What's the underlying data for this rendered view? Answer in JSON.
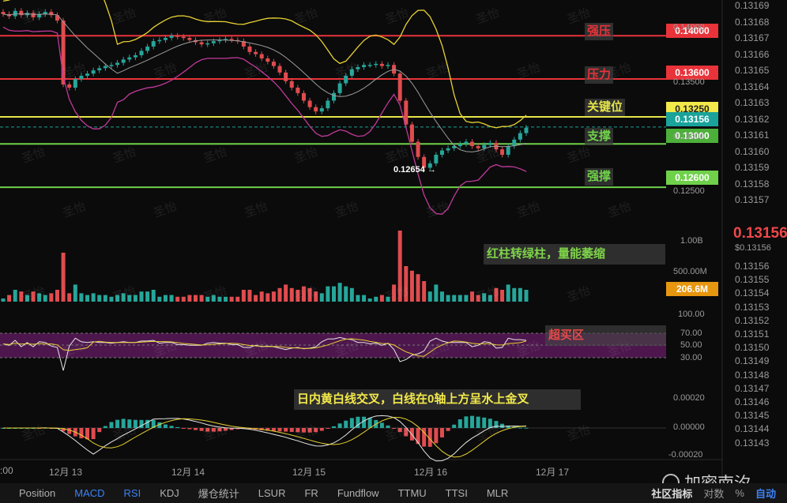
{
  "chart_data": {
    "type": "candlestick",
    "x_labels": [
      "12月 13",
      "12月 14",
      "12月 15",
      "12月 16",
      "12月 17"
    ],
    "time_left_partial": ":00",
    "price_axis": {
      "ticks": [
        "0.14000",
        "0.13500",
        "0.13000",
        "0.12500"
      ],
      "range": [
        0.1236,
        0.1433
      ]
    },
    "levels": [
      {
        "name": "强压",
        "value": 0.14,
        "label": "0.14000",
        "color": "#e8333a"
      },
      {
        "name": "压力",
        "value": 0.136,
        "label": "0.13600",
        "color": "#e8333a"
      },
      {
        "name": "关键位",
        "value": 0.1325,
        "label": "0.13250",
        "color": "#e5e54a"
      },
      {
        "name": "支撑",
        "value": 0.13,
        "label": "0.13000",
        "color": "#6fd14a"
      },
      {
        "name": "强撑",
        "value": 0.126,
        "label": "0.12600",
        "color": "#6fd14a"
      }
    ],
    "current_price": {
      "value": 0.13156,
      "label": "0.13156",
      "color": "#19a39b"
    },
    "low_marker": {
      "value": 0.12654,
      "label": "0.12654"
    },
    "far_axis": {
      "ticks": [
        "0.13169",
        "0.13168",
        "0.13167",
        "0.13166",
        "0.13165",
        "0.13164",
        "0.13163",
        "0.13162",
        "0.13161",
        "0.13160",
        "0.13159",
        "0.13158",
        "0.13157",
        "0.13156",
        "0.13155",
        "0.13154",
        "0.13153",
        "0.13152",
        "0.13151",
        "0.13150",
        "0.13149",
        "0.13148",
        "0.13147",
        "0.13146",
        "0.13145",
        "0.13144",
        "0.13143"
      ],
      "big_label": "0.13156",
      "sub_label": "$0.13156"
    },
    "close_series": [
      0.142,
      0.1418,
      0.1423,
      0.1419,
      0.1421,
      0.1417,
      0.142,
      0.1422,
      0.1419,
      0.1414,
      0.1355,
      0.1352,
      0.136,
      0.1363,
      0.1365,
      0.1368,
      0.137,
      0.1372,
      0.1373,
      0.1375,
      0.1378,
      0.138,
      0.1382,
      0.1386,
      0.139,
      0.1395,
      0.1396,
      0.1398,
      0.14,
      0.1399,
      0.1398,
      0.1396,
      0.1394,
      0.1392,
      0.1393,
      0.1395,
      0.1396,
      0.1397,
      0.1396,
      0.1395,
      0.139,
      0.1385,
      0.1383,
      0.1379,
      0.1376,
      0.1372,
      0.1366,
      0.1358,
      0.1352,
      0.1347,
      0.134,
      0.1334,
      0.133,
      0.1333,
      0.134,
      0.1347,
      0.1356,
      0.1363,
      0.1369,
      0.1371,
      0.1373,
      0.1373,
      0.1374,
      0.1372,
      0.1373,
      0.1365,
      0.134,
      0.1318,
      0.1302,
      0.1288,
      0.1278,
      0.1282,
      0.129,
      0.1294,
      0.1296,
      0.1298,
      0.13,
      0.1302,
      0.1298,
      0.1296,
      0.1299,
      0.1301,
      0.1295,
      0.129,
      0.1298,
      0.1304,
      0.131,
      0.1315
    ],
    "volume_axis": {
      "ticks": [
        "1.00B",
        "500.00M"
      ],
      "current_label": "206.6M"
    },
    "rsi_axis": {
      "ticks": [
        "100.00",
        "70.00",
        "50.00",
        "30.00"
      ]
    },
    "macd_axis": {
      "ticks": [
        "0.00020",
        "0.00000",
        "-0.00020"
      ]
    }
  },
  "labels": {
    "strong_resistance": "强压",
    "resistance": "压力",
    "key_level": "关键位",
    "support": "支撑",
    "strong_support": "强撑"
  },
  "annotations": {
    "volume": "红柱转绿柱，量能萎缩",
    "rsi": "超买区",
    "macd": "日内黄白线交叉，白线在0轴上方呈水上金叉"
  },
  "toolbar": {
    "tabs": [
      "Position",
      "MACD",
      "RSI",
      "KDJ",
      "爆仓统计",
      "LSUR",
      "FR",
      "Fundflow",
      "TTMU",
      "TTSI",
      "MLR"
    ],
    "active": [
      "MACD",
      "RSI"
    ],
    "right": [
      "社区指标",
      "对数",
      "%",
      "自动"
    ]
  },
  "watermark": {
    "repeat_text": "圣怡",
    "brand": "加密南汐"
  },
  "colors": {
    "up": "#26a69a",
    "down": "#e04c4f",
    "upper_band": "#e6d132",
    "lower_band": "#c0399a",
    "mid_band": "#9c9c9c"
  }
}
